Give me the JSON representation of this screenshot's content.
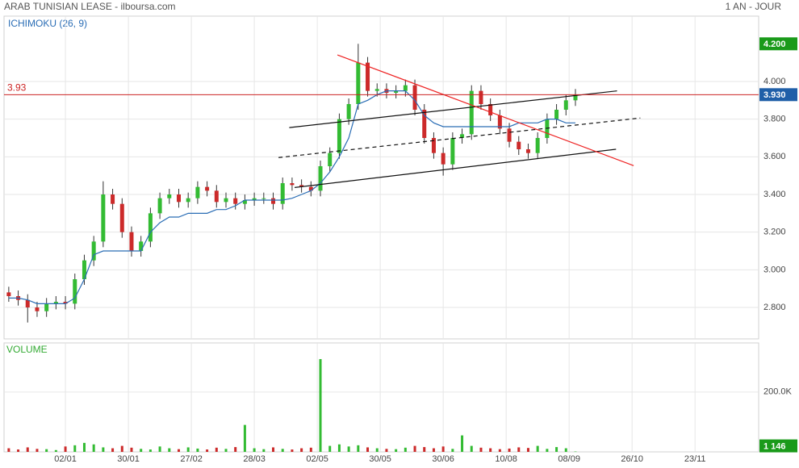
{
  "chart_data": [
    {
      "type": "candlestick",
      "title": "ARAB TUNISIAN LEASE - ilboursa.com",
      "subtitle": "1 AN - JOUR",
      "x": [
        -18,
        -15,
        -12,
        -9,
        -6,
        -3,
        0,
        3,
        6,
        9,
        12,
        15,
        18,
        21,
        24,
        27,
        30,
        33,
        36,
        39,
        42,
        45,
        48,
        51,
        54,
        57,
        60,
        63,
        66,
        69,
        72,
        75,
        78,
        81,
        84,
        87,
        90,
        93,
        96,
        99,
        102,
        105,
        108,
        111,
        114,
        117,
        120,
        123,
        126,
        129,
        132,
        135,
        138,
        141,
        144,
        147,
        150,
        153,
        156,
        159,
        162
      ],
      "open": [
        2.88,
        2.86,
        2.84,
        2.8,
        2.78,
        2.82,
        2.83,
        2.82,
        2.95,
        3.05,
        3.15,
        3.4,
        3.35,
        3.2,
        3.1,
        3.15,
        3.3,
        3.38,
        3.4,
        3.36,
        3.38,
        3.44,
        3.42,
        3.36,
        3.38,
        3.35,
        3.37,
        3.38,
        3.38,
        3.35,
        3.46,
        3.45,
        3.44,
        3.42,
        3.55,
        3.62,
        3.8,
        3.88,
        4.1,
        3.95,
        3.96,
        3.94,
        3.95,
        3.98,
        3.85,
        3.7,
        3.62,
        3.56,
        3.7,
        3.72,
        3.95,
        3.88,
        3.82,
        3.75,
        3.68,
        3.64,
        3.62,
        3.7,
        3.8,
        3.85,
        3.9
      ],
      "high": [
        2.91,
        2.89,
        2.87,
        2.83,
        2.85,
        2.86,
        2.86,
        2.98,
        3.08,
        3.18,
        3.47,
        3.43,
        3.38,
        3.23,
        3.18,
        3.33,
        3.41,
        3.43,
        3.43,
        3.41,
        3.47,
        3.47,
        3.45,
        3.41,
        3.41,
        3.4,
        3.41,
        3.41,
        3.41,
        3.49,
        3.49,
        3.48,
        3.47,
        3.58,
        3.65,
        3.83,
        3.91,
        4.2,
        4.13,
        3.99,
        3.99,
        3.98,
        4.01,
        4.01,
        3.88,
        3.73,
        3.65,
        3.73,
        3.75,
        3.98,
        3.98,
        3.91,
        3.85,
        3.78,
        3.71,
        3.67,
        3.73,
        3.83,
        3.88,
        3.93,
        3.96
      ],
      "low": [
        2.83,
        2.81,
        2.72,
        2.75,
        2.75,
        2.79,
        2.79,
        2.79,
        2.92,
        3.02,
        3.12,
        3.32,
        3.17,
        3.07,
        3.07,
        3.12,
        3.27,
        3.35,
        3.33,
        3.33,
        3.35,
        3.39,
        3.33,
        3.33,
        3.32,
        3.32,
        3.34,
        3.35,
        3.32,
        3.32,
        3.42,
        3.41,
        3.39,
        3.39,
        3.52,
        3.59,
        3.77,
        3.85,
        3.92,
        3.92,
        3.91,
        3.91,
        3.92,
        3.82,
        3.67,
        3.59,
        3.5,
        3.53,
        3.67,
        3.69,
        3.85,
        3.79,
        3.72,
        3.65,
        3.61,
        3.59,
        3.59,
        3.67,
        3.77,
        3.82,
        3.87
      ],
      "close": [
        2.86,
        2.84,
        2.8,
        2.78,
        2.82,
        2.83,
        2.82,
        2.95,
        3.05,
        3.15,
        3.4,
        3.35,
        3.2,
        3.1,
        3.15,
        3.3,
        3.38,
        3.4,
        3.36,
        3.38,
        3.44,
        3.42,
        3.36,
        3.38,
        3.35,
        3.37,
        3.38,
        3.38,
        3.35,
        3.46,
        3.45,
        3.44,
        3.42,
        3.55,
        3.62,
        3.8,
        3.88,
        4.1,
        3.95,
        3.96,
        3.94,
        3.95,
        3.98,
        3.85,
        3.7,
        3.62,
        3.56,
        3.7,
        3.72,
        3.95,
        3.88,
        3.82,
        3.75,
        3.68,
        3.64,
        3.62,
        3.7,
        3.8,
        3.85,
        3.9,
        3.93
      ],
      "up_color": "#33bb33",
      "down_color": "#cc2a2a",
      "series": [
        {
          "name": "ICHIMOKU (26, 9)",
          "color": "#2a6db5",
          "values": [
            2.85,
            2.85,
            2.84,
            2.82,
            2.82,
            2.82,
            2.82,
            2.85,
            2.95,
            3.08,
            3.1,
            3.1,
            3.1,
            3.1,
            3.1,
            3.2,
            3.25,
            3.28,
            3.28,
            3.3,
            3.3,
            3.3,
            3.32,
            3.32,
            3.34,
            3.37,
            3.37,
            3.37,
            3.37,
            3.37,
            3.38,
            3.4,
            3.42,
            3.46,
            3.52,
            3.6,
            3.7,
            3.88,
            3.9,
            3.93,
            3.95,
            3.95,
            3.95,
            3.9,
            3.82,
            3.78,
            3.76,
            3.76,
            3.76,
            3.76,
            3.76,
            3.76,
            3.76,
            3.76,
            3.78,
            3.78,
            3.78,
            3.8,
            3.8,
            3.78,
            3.78
          ]
        }
      ],
      "ylim": [
        2.633,
        4.347
      ],
      "yticks": [
        {
          "value": 2.8,
          "label": "2.800"
        },
        {
          "value": 3.0,
          "label": "3.000"
        },
        {
          "value": 3.2,
          "label": "3.200"
        },
        {
          "value": 3.4,
          "label": "3.400"
        },
        {
          "value": 3.6,
          "label": "3.600"
        },
        {
          "value": 3.8,
          "label": "3.800"
        },
        {
          "value": 4.0,
          "label": "4.000"
        }
      ],
      "reference_line": {
        "value": 3.93,
        "color": "#cc2222"
      },
      "last_label": {
        "value": 3.93,
        "label": "3.930",
        "color": "#1f5fa8"
      },
      "max_label": {
        "value": 4.2,
        "label": "4.200",
        "color": "#1a9a1a"
      },
      "trendlines": [
        {
          "x": [
            71.1,
            175.2
          ],
          "y": [
            3.755,
            3.95
          ],
          "color": "#111111",
          "dash": false
        },
        {
          "x": [
            67.7,
            182.6
          ],
          "y": [
            3.596,
            3.806
          ],
          "color": "#111111",
          "dash": true
        },
        {
          "x": [
            72.8,
            174.9
          ],
          "y": [
            3.437,
            3.64
          ],
          "color": "#111111",
          "dash": false
        },
        {
          "x": [
            86.4,
            180.5
          ],
          "y": [
            4.141,
            3.553
          ],
          "color": "#ee2222",
          "dash": false
        }
      ],
      "grid": true
    },
    {
      "type": "bar",
      "title": "VOLUME",
      "values": [
        12000,
        8000,
        15000,
        10000,
        9000,
        6000,
        18000,
        22000,
        30000,
        25000,
        15000,
        12000,
        20000,
        14000,
        10000,
        8000,
        18000,
        12000,
        9000,
        15000,
        11000,
        8000,
        14000,
        10000,
        16000,
        90000,
        12000,
        9000,
        15000,
        10000,
        8000,
        12000,
        14000,
        310000,
        20000,
        25000,
        18000,
        22000,
        15000,
        12000,
        10000,
        9000,
        14000,
        20000,
        16000,
        12000,
        18000,
        10000,
        55000,
        20000,
        14000,
        12000,
        9000,
        11000,
        15000,
        13000,
        20000,
        10000,
        16000,
        12000,
        1146
      ],
      "ylim": [
        0,
        364000
      ],
      "yticks": [
        {
          "value": 200000,
          "label": "200.0K"
        }
      ],
      "last_label": {
        "value": 1146,
        "label": "1 146",
        "color": "#1a9a1a"
      },
      "xlim": [
        -19.5,
        220.2
      ],
      "xticks": [
        {
          "value": 0,
          "label": "02/01"
        },
        {
          "value": 20,
          "label": "30/01"
        },
        {
          "value": 40,
          "label": "27/02"
        },
        {
          "value": 60,
          "label": "28/03"
        },
        {
          "value": 80,
          "label": "02/05"
        },
        {
          "value": 100,
          "label": "30/05"
        },
        {
          "value": 120,
          "label": "30/06"
        },
        {
          "value": 140,
          "label": "10/08"
        },
        {
          "value": 160,
          "label": "08/09"
        },
        {
          "value": 180,
          "label": "26/10"
        },
        {
          "value": 200,
          "label": "23/11"
        }
      ],
      "grid": true
    }
  ]
}
